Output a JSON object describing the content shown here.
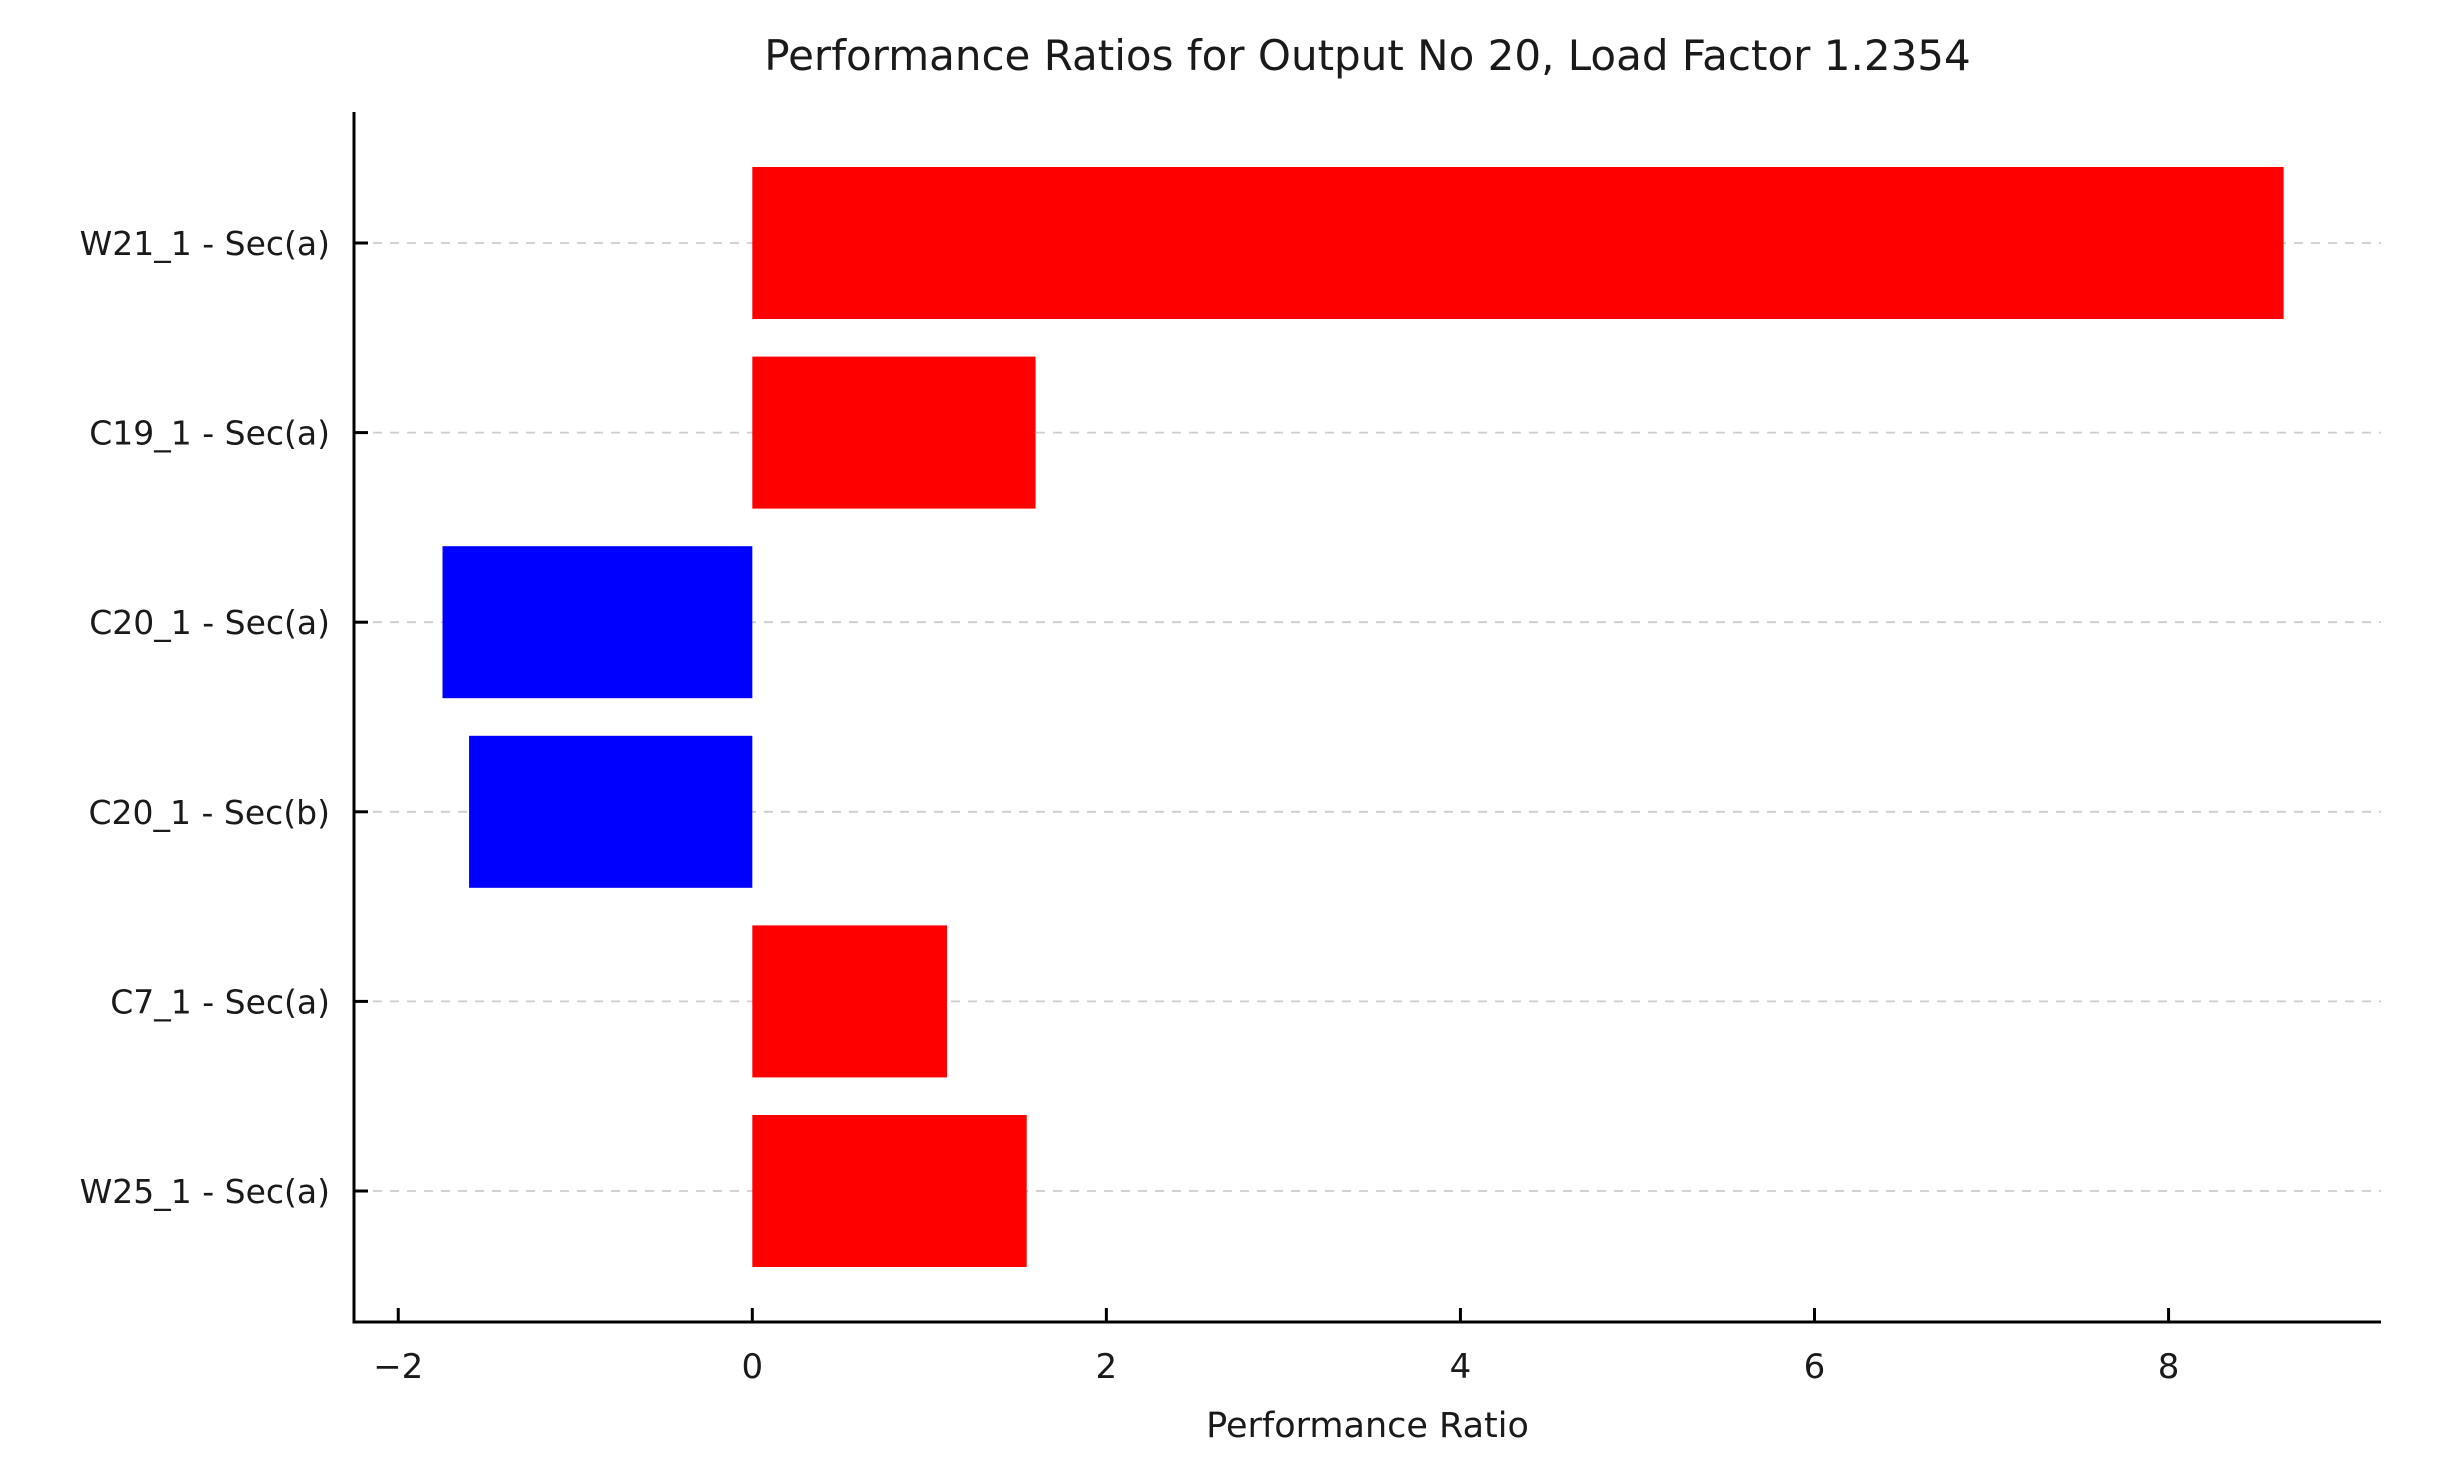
{
  "figure": {
    "background": "#ffffff"
  },
  "chart_data": {
    "type": "bar",
    "orientation": "horizontal",
    "title": "Performance Ratios for Output No 20, Load Factor 1.2354",
    "xlabel": "Performance Ratio",
    "ylabel": "",
    "categories": [
      "W21_1 - Sec(a)",
      "C19_1 - Sec(a)",
      "C20_1 - Sec(a)",
      "C20_1 - Sec(b)",
      "C7_1 - Sec(a)",
      "W25_1 - Sec(a)"
    ],
    "values": [
      8.65,
      1.6,
      -1.75,
      -1.6,
      1.1,
      1.55
    ],
    "bar_colors": [
      "#ff0000",
      "#ff0000",
      "#0000ff",
      "#0000ff",
      "#ff0000",
      "#ff0000"
    ],
    "positive_color": "#ff0000",
    "negative_color": "#0000ff",
    "xticks": [
      {
        "value": -2,
        "label": "−2"
      },
      {
        "value": 0,
        "label": "0"
      },
      {
        "value": 2,
        "label": "2"
      },
      {
        "value": 4,
        "label": "4"
      },
      {
        "value": 6,
        "label": "6"
      },
      {
        "value": 8,
        "label": "8"
      }
    ],
    "xlim": [
      -2.25,
      9.2
    ],
    "grid": {
      "axis": "y",
      "style": "dashed",
      "color": "#cccccc"
    },
    "legend": "none",
    "axis_color": "#000000",
    "text_color": "#1a1a1a"
  }
}
